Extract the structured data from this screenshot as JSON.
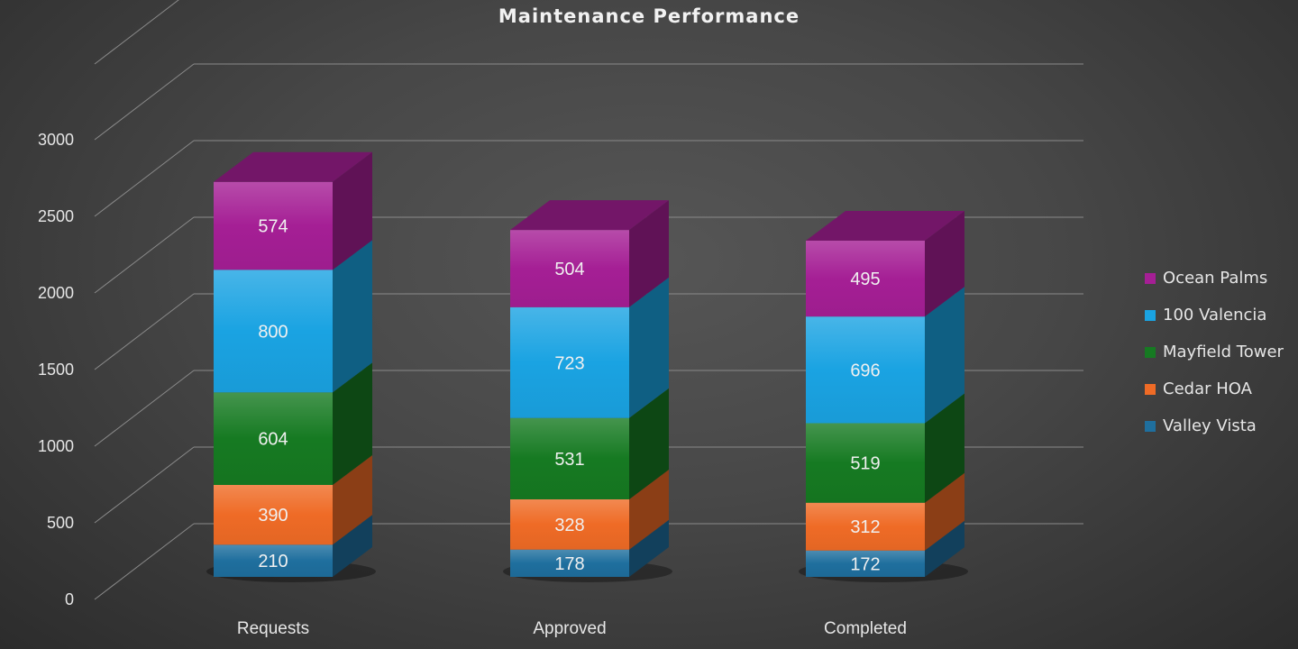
{
  "chart_data": {
    "type": "bar",
    "stacked": true,
    "three_d": true,
    "title": "Maintenance Performance",
    "categories": [
      "Requests",
      "Approved",
      "Completed"
    ],
    "series": [
      {
        "name": "Valley Vista",
        "color": "#1f6f9e",
        "values": [
          210,
          178,
          172
        ]
      },
      {
        "name": "Cedar HOA",
        "color": "#ef6b26",
        "values": [
          390,
          328,
          312
        ]
      },
      {
        "name": "Mayfield Tower",
        "color": "#167a22",
        "values": [
          604,
          531,
          519
        ]
      },
      {
        "name": "100 Valencia",
        "color": "#1aa3e2",
        "values": [
          800,
          723,
          696
        ]
      },
      {
        "name": "Ocean Palms",
        "color": "#a51f95",
        "values": [
          574,
          504,
          495
        ]
      }
    ],
    "ylim": [
      0,
      3000
    ],
    "yticks": [
      0,
      500,
      1000,
      1500,
      2000,
      2500,
      3000
    ],
    "grid": true,
    "legend_position": "right",
    "data_labels": true
  }
}
